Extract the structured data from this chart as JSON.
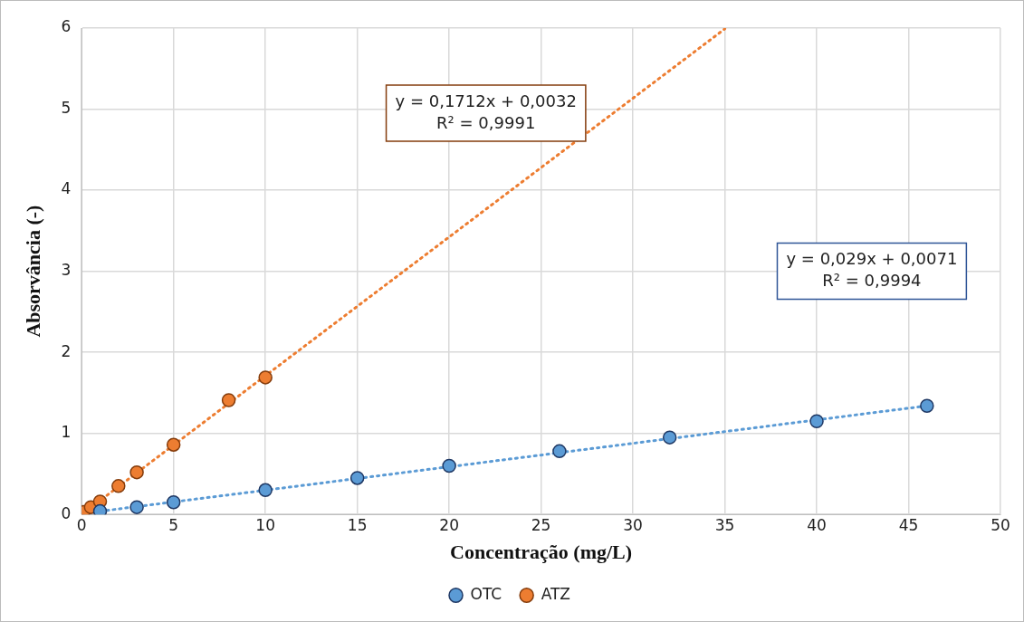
{
  "chart_data": {
    "type": "scatter",
    "xlabel": "Concentração (mg/L)",
    "ylabel": "Absorvância (-)",
    "xlim": [
      0,
      50
    ],
    "xticks": [
      0,
      5,
      10,
      15,
      20,
      25,
      30,
      35,
      40,
      45,
      50
    ],
    "ylim": [
      0,
      6
    ],
    "yticks": [
      0,
      1,
      2,
      3,
      4,
      5,
      6
    ],
    "grid": true,
    "legend": "bottom",
    "marker": "circle",
    "series": [
      {
        "name": "OTC",
        "color": "#5b9bd5",
        "x": [
          1,
          3,
          5,
          10,
          15,
          20,
          26,
          32,
          40,
          46
        ],
        "values": [
          0.04,
          0.09,
          0.15,
          0.3,
          0.45,
          0.6,
          0.78,
          0.95,
          1.15,
          1.34
        ]
      },
      {
        "name": "ATZ",
        "color": "#ed7d31",
        "x": [
          0.1,
          0.5,
          1,
          2,
          3,
          5,
          8,
          10
        ],
        "values": [
          0.03,
          0.09,
          0.16,
          0.35,
          0.52,
          0.86,
          1.41,
          1.69
        ]
      },
      {
        "type": "line",
        "color": "#5b9bd5",
        "line_style": "dotted",
        "marker": "none",
        "x": [
          0,
          46
        ],
        "values": [
          0.01,
          1.34
        ]
      },
      {
        "type": "line",
        "color": "#ed7d31",
        "line_style": "dotted",
        "marker": "none",
        "x": [
          0,
          35
        ],
        "values": [
          0,
          5.99
        ]
      }
    ],
    "annotations": [
      "y = 0,1712x + 0,0032\nR² = 0,9991",
      "y = 0,029x + 0,0071\nR² = 0,9994"
    ]
  }
}
